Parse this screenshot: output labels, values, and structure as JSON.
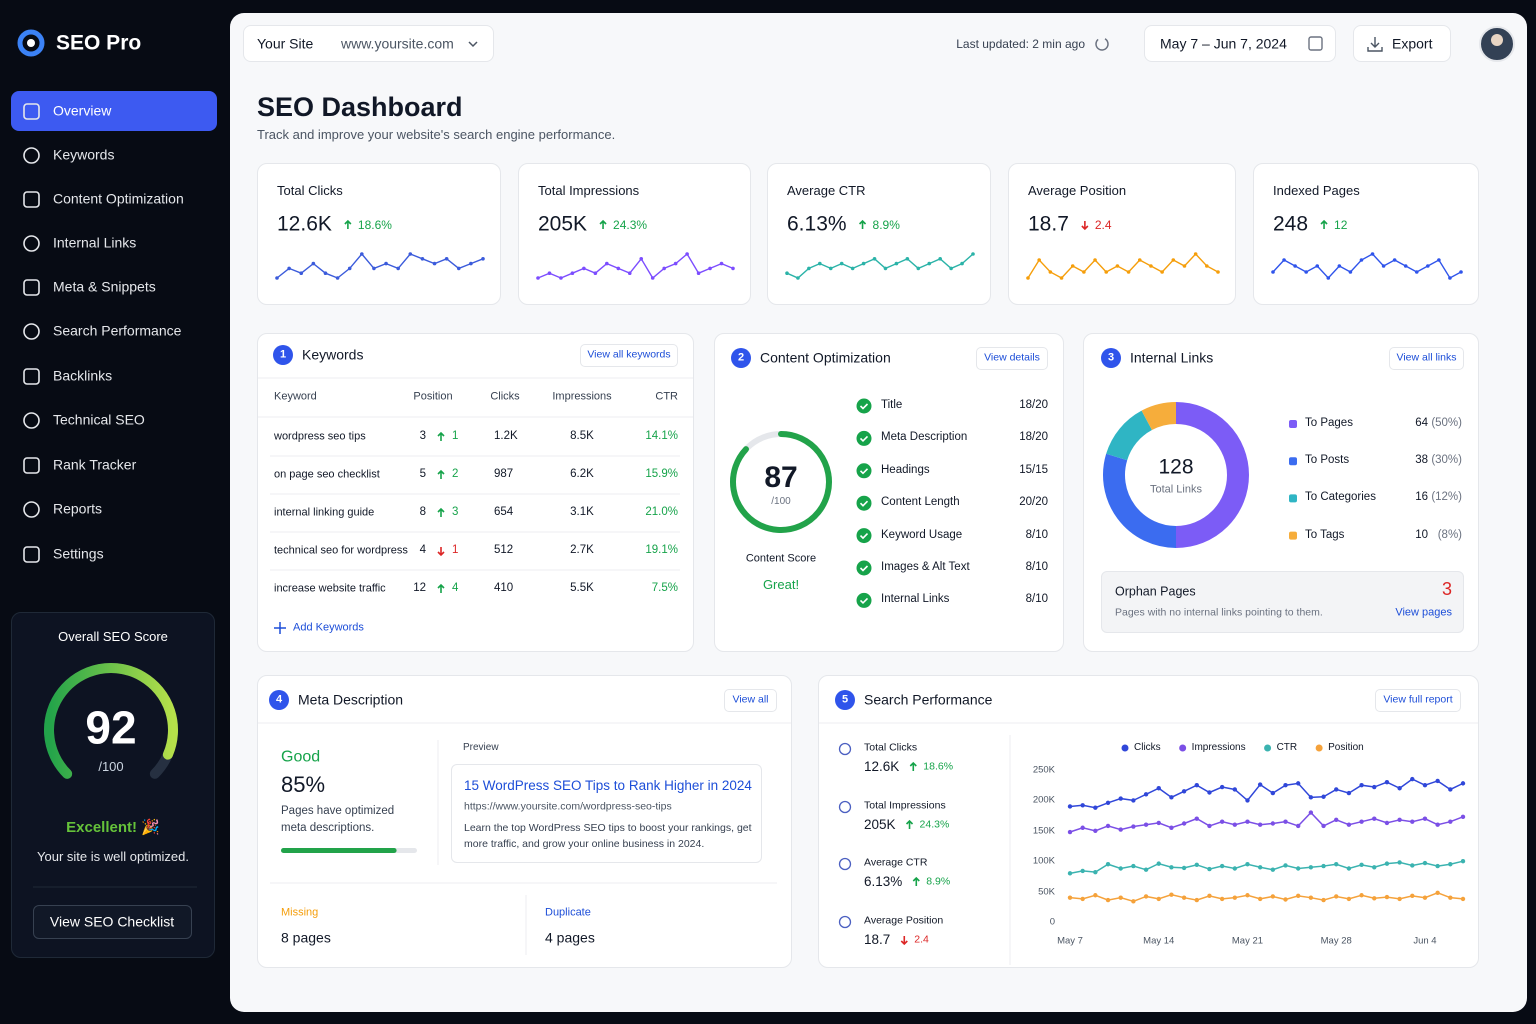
{
  "brand": "SEO Pro",
  "nav": [
    "Overview",
    "Keywords",
    "Content Optimization",
    "Internal Links",
    "Meta & Snippets",
    "Search Performance",
    "Backlinks",
    "Technical SEO",
    "Rank Tracker",
    "Reports",
    "Settings"
  ],
  "score_card": {
    "title": "Overall SEO Score",
    "score": 92,
    "max": 100,
    "max_label": "/100",
    "status": "Excellent! 🎉",
    "note": "Your site is well optimized.",
    "button": "View SEO Checklist"
  },
  "topbar": {
    "site_label": "Your Site",
    "site": "www.yoursite.com",
    "updated": "Last updated: 2 min ago",
    "dates": "May 7 – Jun 7, 2024",
    "export": "Export"
  },
  "header": {
    "title": "SEO Dashboard",
    "subtitle": "Track and improve your website's search engine performance."
  },
  "kpis": [
    {
      "label": "Total Clicks",
      "value": "12.6K",
      "change": "18.6%",
      "trend": "up",
      "color": "#3b5bdb",
      "spark": [
        3,
        5,
        4,
        6,
        4,
        3,
        5,
        8,
        5,
        6,
        5,
        8,
        7,
        6,
        7,
        5,
        6,
        7
      ]
    },
    {
      "label": "Total Impressions",
      "value": "205K",
      "change": "24.3%",
      "trend": "up",
      "color": "#7c4dff",
      "spark": [
        4,
        5,
        4,
        5,
        6,
        5,
        7,
        6,
        5,
        8,
        4,
        6,
        7,
        9,
        5,
        6,
        7,
        6
      ]
    },
    {
      "label": "Average CTR",
      "value": "6.13%",
      "change": "8.9%",
      "trend": "up",
      "color": "#2bb3a8",
      "spark": [
        4,
        3,
        5,
        6,
        5,
        6,
        5,
        6,
        7,
        5,
        6,
        7,
        5,
        6,
        7,
        5,
        6,
        8
      ]
    },
    {
      "label": "Average Position",
      "value": "18.7",
      "change": "2.4",
      "trend": "down",
      "color": "#f59e0b",
      "spark": [
        4,
        7,
        5,
        4,
        6,
        5,
        7,
        5,
        6,
        5,
        7,
        6,
        5,
        7,
        6,
        8,
        6,
        5
      ]
    },
    {
      "label": "Indexed Pages",
      "value": "248",
      "change": "12",
      "trend": "up",
      "color": "#2f54eb",
      "spark": [
        5,
        7,
        6,
        5,
        6,
        4,
        6,
        5,
        7,
        8,
        6,
        7,
        6,
        5,
        6,
        7,
        4,
        5
      ]
    }
  ],
  "keywords": {
    "badge": "1",
    "title": "Keywords",
    "action": "View all keywords",
    "columns": [
      "Keyword",
      "Position",
      "Clicks",
      "Impressions",
      "CTR"
    ],
    "rows": [
      {
        "keyword": "wordpress seo tips",
        "position": 3,
        "change": 1,
        "trend": "up",
        "clicks": "1.2K",
        "impressions": "8.5K",
        "ctr": "14.1%"
      },
      {
        "keyword": "on page seo checklist",
        "position": 5,
        "change": 2,
        "trend": "up",
        "clicks": "987",
        "impressions": "6.2K",
        "ctr": "15.9%"
      },
      {
        "keyword": "internal linking guide",
        "position": 8,
        "change": 3,
        "trend": "up",
        "clicks": "654",
        "impressions": "3.1K",
        "ctr": "21.0%"
      },
      {
        "keyword": "technical seo for wordpress",
        "position": 4,
        "change": 1,
        "trend": "down",
        "clicks": "512",
        "impressions": "2.7K",
        "ctr": "19.1%"
      },
      {
        "keyword": "increase website traffic",
        "position": 12,
        "change": 4,
        "trend": "up",
        "clicks": "410",
        "impressions": "5.5K",
        "ctr": "7.5%"
      }
    ],
    "add": "Add Keywords"
  },
  "content": {
    "badge": "2",
    "title": "Content Optimization",
    "action": "View details",
    "score": 87,
    "max": 100,
    "max_label": "/100",
    "score_label": "Content Score",
    "status": "Great!",
    "items": [
      {
        "name": "Title",
        "score": "18/20"
      },
      {
        "name": "Meta Description",
        "score": "18/20"
      },
      {
        "name": "Headings",
        "score": "15/15"
      },
      {
        "name": "Content Length",
        "score": "20/20"
      },
      {
        "name": "Keyword Usage",
        "score": "8/10"
      },
      {
        "name": "Images & Alt Text",
        "score": "8/10"
      },
      {
        "name": "Internal Links",
        "score": "8/10"
      }
    ]
  },
  "internal_links": {
    "badge": "3",
    "title": "Internal Links",
    "action": "View all links",
    "total": 128,
    "total_label": "Total Links",
    "names": [
      "To Pages",
      "To Posts",
      "To Categories",
      "To Tags"
    ],
    "values": [
      64,
      38,
      16,
      10
    ],
    "value_labels": [
      "(50%)",
      "(30%)",
      "(12%)",
      "(8%)"
    ],
    "colors": [
      "#7c5cf6",
      "#3b6cf0",
      "#2fb5c4",
      "#f6ad3b"
    ],
    "orphan": {
      "title": "Orphan Pages",
      "count": 3,
      "note": "Pages with no internal links pointing to them.",
      "link": "View pages"
    }
  },
  "meta": {
    "badge": "4",
    "title": "Meta Description",
    "action": "View all",
    "status": "Good",
    "value": 85,
    "value_label": "85%",
    "note": "Pages have optimized meta descriptions.",
    "preview_label": "Preview",
    "preview_title": "15 WordPress SEO Tips to Rank Higher in 2024",
    "preview_url": "https://www.yoursite.com/wordpress-seo-tips",
    "preview_text": "Learn the top WordPress SEO tips to boost your rankings, get more traffic, and grow your online business in 2024.",
    "missing_label": "Missing",
    "missing": "8 pages",
    "duplicate_label": "Duplicate",
    "duplicate": "4 pages"
  },
  "search": {
    "badge": "5",
    "title": "Search Performance",
    "action": "View full report",
    "metrics": [
      {
        "label": "Total Clicks",
        "value": "12.6K",
        "change": "18.6%",
        "trend": "up"
      },
      {
        "label": "Total Impressions",
        "value": "205K",
        "change": "24.3%",
        "trend": "up"
      },
      {
        "label": "Average CTR",
        "value": "6.13%",
        "change": "8.9%",
        "trend": "up"
      },
      {
        "label": "Average Position",
        "value": "18.7",
        "change": "2.4",
        "trend": "down"
      }
    ],
    "chart_data": {
      "type": "line",
      "grid": false,
      "categories": [
        "May 7",
        null,
        null,
        null,
        null,
        null,
        null,
        "May 14",
        null,
        null,
        null,
        null,
        null,
        null,
        "May 21",
        null,
        null,
        null,
        null,
        null,
        null,
        "May 28",
        null,
        null,
        null,
        null,
        null,
        null,
        "Jun 4",
        null,
        null,
        null
      ],
      "ylim": [
        0,
        250000
      ],
      "yticks": [
        0,
        {
          "value": 50000,
          "label": "50K"
        },
        {
          "value": 100000,
          "label": "100K"
        },
        {
          "value": 150000,
          "label": "150K"
        },
        {
          "value": 200000,
          "label": "200K"
        },
        {
          "value": 250000,
          "label": "250K"
        }
      ],
      "series": [
        {
          "name": "Clicks",
          "color": "#3047d9",
          "values": [
            190000,
            192000,
            188000,
            196000,
            203000,
            200000,
            210000,
            220000,
            205000,
            215000,
            225000,
            213000,
            222000,
            218000,
            200000,
            226000,
            212000,
            225000,
            228000,
            205000,
            206000,
            218000,
            212000,
            225000,
            222000,
            230000,
            220000,
            235000,
            225000,
            232000,
            218000,
            228000
          ]
        },
        {
          "name": "Impressions",
          "color": "#7b4fe6",
          "values": [
            148000,
            155000,
            150000,
            158000,
            152000,
            157000,
            160000,
            163000,
            155000,
            162000,
            170000,
            158000,
            165000,
            160000,
            165000,
            160000,
            162000,
            165000,
            158000,
            180000,
            158000,
            168000,
            160000,
            165000,
            170000,
            163000,
            168000,
            165000,
            170000,
            160000,
            165000,
            173000
          ]
        },
        {
          "name": "CTR",
          "color": "#3bb3b0",
          "values": [
            80000,
            84000,
            82000,
            95000,
            88000,
            92000,
            86000,
            96000,
            90000,
            89000,
            94000,
            87000,
            92000,
            88000,
            95000,
            90000,
            86000,
            93000,
            88000,
            90000,
            92000,
            95000,
            88000,
            94000,
            90000,
            96000,
            98000,
            93000,
            97000,
            92000,
            95000,
            100000
          ]
        },
        {
          "name": "Position",
          "color": "#f5a23b",
          "values": [
            40000,
            38000,
            44000,
            36000,
            40000,
            34000,
            42000,
            38000,
            45000,
            40000,
            36000,
            43000,
            38000,
            40000,
            44000,
            38000,
            42000,
            37000,
            43000,
            40000,
            36000,
            42000,
            38000,
            44000,
            39000,
            41000,
            38000,
            43000,
            40000,
            48000,
            40000,
            38000
          ]
        }
      ]
    }
  }
}
